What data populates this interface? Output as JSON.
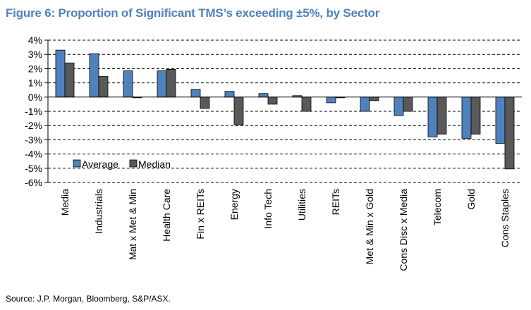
{
  "title": "Figure 6: Proportion of Significant TMS’s exceeding ±5%, by Sector",
  "source": "Source: J.P. Morgan, Bloomberg, S&P/ASX.",
  "colors": {
    "average": "#4f81bd",
    "median": "#595959",
    "title": "#4f81bd"
  },
  "chart_data": {
    "type": "bar",
    "title": "Figure 6: Proportion of Significant TMS’s exceeding ±5%, by Sector",
    "xlabel": "",
    "ylabel": "",
    "ylim": [
      -6,
      4
    ],
    "yticks": [
      4,
      3,
      2,
      1,
      0,
      -1,
      -2,
      -3,
      -4,
      -5,
      -6
    ],
    "ytick_labels": [
      "4%",
      "3%",
      "2%",
      "1%",
      "0%",
      "-1%",
      "-2%",
      "-3%",
      "-4%",
      "-5%",
      "-6%"
    ],
    "legend_position": "bottom-left",
    "grid": "horizontal dashed",
    "categories": [
      "Media",
      "Industrials",
      "Mat x Met & Min",
      "Health Care",
      "Fin x REITs",
      "Energy",
      "Info Tech",
      "Utilities",
      "REITs",
      "Met & Min x Gold",
      "Cons Disc x Media",
      "Telecom",
      "Gold",
      "Cons Staples"
    ],
    "series": [
      {
        "name": "Average",
        "values": [
          3.3,
          3.05,
          1.85,
          1.85,
          0.55,
          0.4,
          0.25,
          0.1,
          -0.4,
          -1.0,
          -1.3,
          -2.8,
          -2.9,
          -3.25
        ]
      },
      {
        "name": "Median",
        "values": [
          2.4,
          1.45,
          -0.05,
          1.95,
          -0.8,
          -1.95,
          -0.5,
          -1.0,
          -0.05,
          -0.25,
          -1.0,
          -2.6,
          -2.6,
          -5.05
        ]
      }
    ]
  }
}
